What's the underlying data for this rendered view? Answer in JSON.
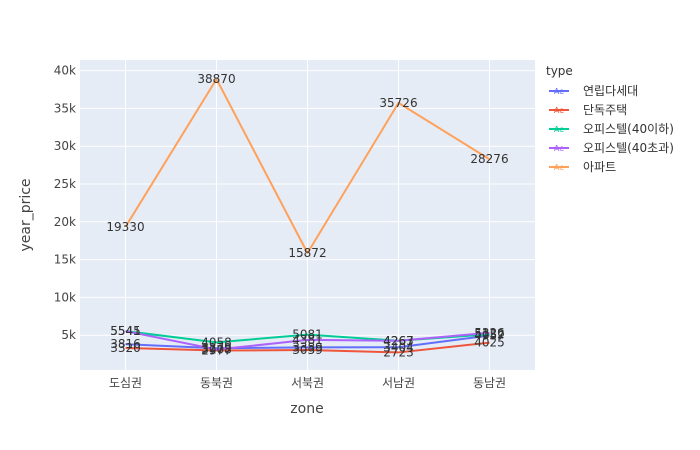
{
  "chart_data": {
    "type": "line",
    "xlabel": "zone",
    "ylabel": "year_price",
    "categories": [
      "도심권",
      "동북권",
      "서북권",
      "서남권",
      "동남권"
    ],
    "y_ticks": [
      5000,
      10000,
      15000,
      20000,
      25000,
      30000,
      35000,
      40000
    ],
    "y_tick_labels": [
      "5k",
      "10k",
      "15k",
      "20k",
      "25k",
      "30k",
      "35k",
      "40k"
    ],
    "ylim": [
      400,
      41400
    ],
    "grid": true,
    "legend": {
      "title": "type",
      "placement": "right"
    },
    "series": [
      {
        "name": "연립다세대",
        "color": "#636efa",
        "values": [
          3816,
          3279,
          3389,
          3404,
          4957
        ]
      },
      {
        "name": "단독주택",
        "color": "#ef553b",
        "values": [
          3320,
          2977,
          3039,
          2723,
          4025
        ]
      },
      {
        "name": "오피스텔(40이하)",
        "color": "#00cc96",
        "values": [
          5541,
          4058,
          5081,
          4263,
          5132
        ]
      },
      {
        "name": "오피스텔(40초과)",
        "color": "#ab63fa",
        "values": [
          5545,
          3108,
          4381,
          4267,
          5326
        ]
      },
      {
        "name": "아파트",
        "color": "#ffa15a",
        "values": [
          19330,
          38870,
          15872,
          35726,
          28276
        ]
      }
    ]
  }
}
